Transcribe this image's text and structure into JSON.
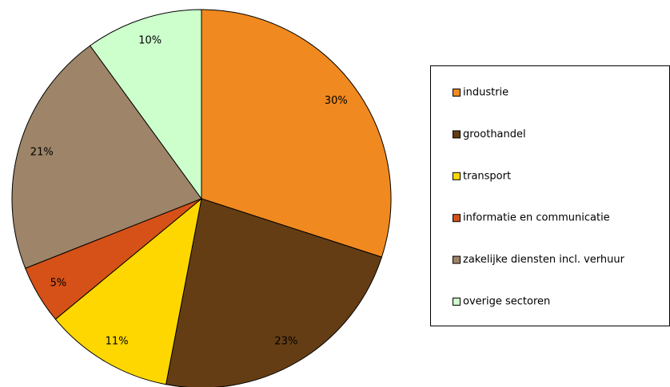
{
  "chart_data": {
    "type": "pie",
    "categories": [
      "industrie",
      "groothandel",
      "transport",
      "informatie en communicatie",
      "zakelijke diensten incl. verhuur",
      "overige sectoren"
    ],
    "values": [
      30,
      23,
      11,
      5,
      21,
      10
    ],
    "value_labels": [
      "30%",
      "23%",
      "11%",
      "5%",
      "21%",
      "10%"
    ],
    "colors": [
      "#f0891f",
      "#653d14",
      "#ffd700",
      "#d55118",
      "#9e8468",
      "#ccffcc"
    ],
    "legend": "right"
  }
}
